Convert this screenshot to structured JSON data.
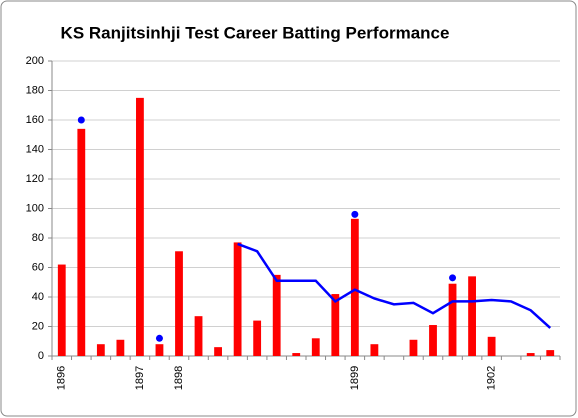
{
  "chart_data": {
    "type": "bar",
    "title": "KS Ranjitsinhji Test Career Batting Performance",
    "categories": [
      "1896",
      null,
      null,
      null,
      "1897",
      null,
      "1898",
      null,
      null,
      null,
      null,
      null,
      null,
      null,
      null,
      "1899",
      null,
      null,
      null,
      null,
      null,
      null,
      "1902",
      null,
      null,
      null
    ],
    "series": [
      {
        "type": "bar",
        "color": "#ff0000",
        "values": [
          62,
          154,
          8,
          11,
          175,
          8,
          71,
          27,
          6,
          77,
          24,
          55,
          2,
          12,
          42,
          93,
          8,
          0,
          11,
          21,
          49,
          54,
          13,
          0,
          2,
          4
        ]
      },
      {
        "type": "scatter",
        "color": "#0000ff",
        "values": [
          null,
          160,
          null,
          null,
          null,
          12,
          null,
          null,
          null,
          null,
          null,
          null,
          null,
          null,
          null,
          96,
          null,
          null,
          null,
          null,
          53,
          null,
          null,
          null,
          null,
          null
        ]
      },
      {
        "type": "line",
        "color": "#0000ff",
        "values": [
          null,
          null,
          null,
          null,
          null,
          null,
          null,
          null,
          null,
          76,
          71,
          51,
          51,
          51,
          37,
          45,
          39,
          35,
          36,
          29,
          37,
          37,
          38,
          37,
          31,
          19
        ]
      }
    ],
    "ylim": [
      0,
      200
    ],
    "yticks": [
      0,
      20,
      40,
      60,
      80,
      100,
      120,
      140,
      160,
      180,
      200
    ],
    "grid": true
  }
}
